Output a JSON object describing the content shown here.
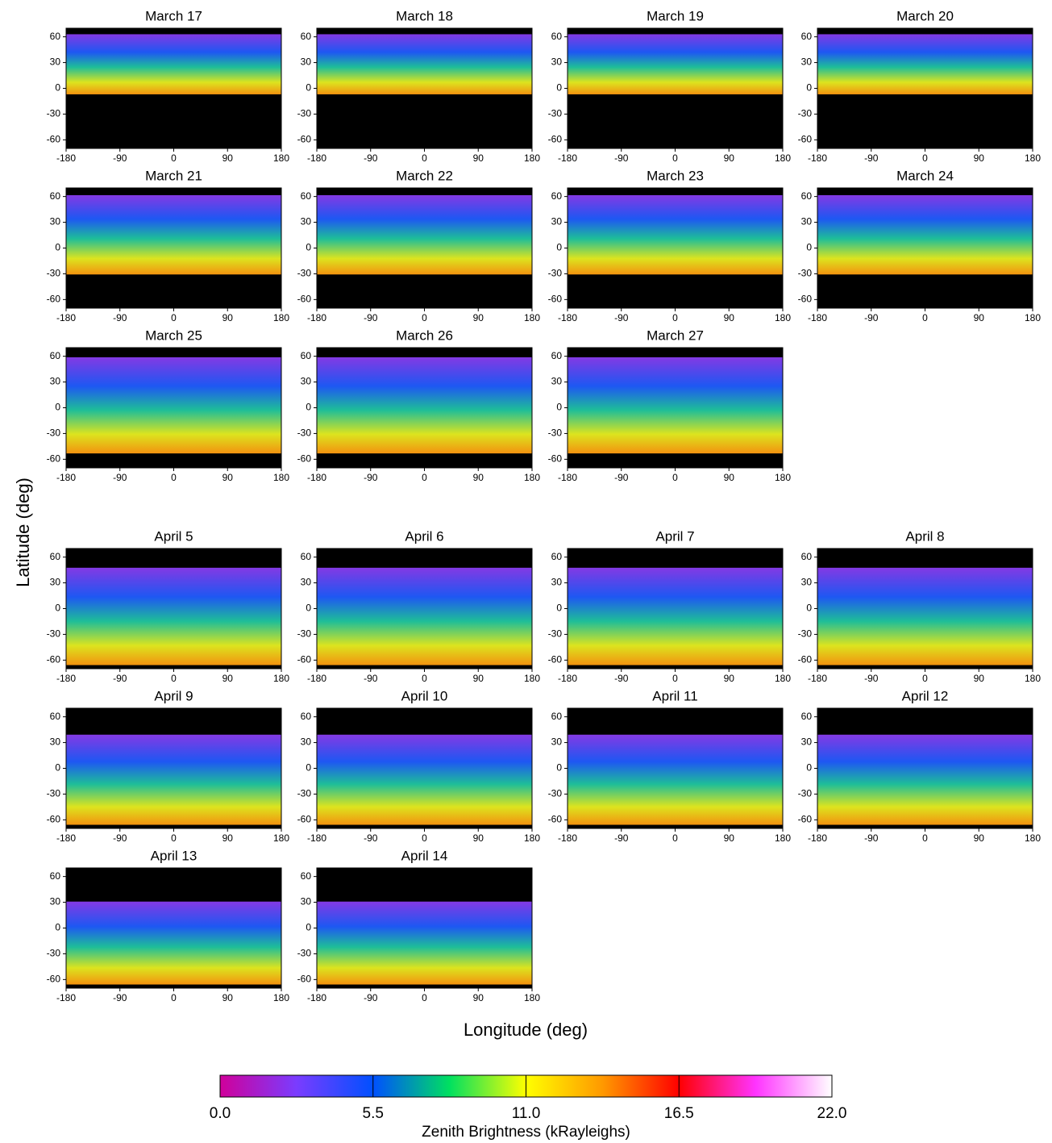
{
  "ylabel": "Latitude (deg)",
  "xlabel": "Longitude (deg)",
  "chart_data": [
    {
      "type": "map",
      "title": "March 17",
      "xlim": [
        -180,
        180
      ],
      "ylim": [
        -70,
        70
      ],
      "xticks": [
        -180,
        -90,
        0,
        90,
        180
      ],
      "yticks": [
        -60,
        -30,
        0,
        30,
        60
      ]
    },
    {
      "type": "map",
      "title": "March 18",
      "xlim": [
        -180,
        180
      ],
      "ylim": [
        -70,
        70
      ],
      "xticks": [
        -180,
        -90,
        0,
        90,
        180
      ],
      "yticks": [
        -60,
        -30,
        0,
        30,
        60
      ]
    },
    {
      "type": "map",
      "title": "March 19",
      "xlim": [
        -180,
        180
      ],
      "ylim": [
        -70,
        70
      ],
      "xticks": [
        -180,
        -90,
        0,
        90,
        180
      ],
      "yticks": [
        -60,
        -30,
        0,
        30,
        60
      ]
    },
    {
      "type": "map",
      "title": "March 20",
      "xlim": [
        -180,
        180
      ],
      "ylim": [
        -70,
        70
      ],
      "xticks": [
        -180,
        -90,
        0,
        90,
        180
      ],
      "yticks": [
        -60,
        -30,
        0,
        30,
        60
      ]
    },
    {
      "type": "map",
      "title": "March 21",
      "xlim": [
        -180,
        180
      ],
      "ylim": [
        -70,
        70
      ],
      "xticks": [
        -180,
        -90,
        0,
        90,
        180
      ],
      "yticks": [
        -60,
        -30,
        0,
        30,
        60
      ]
    },
    {
      "type": "map",
      "title": "March 22",
      "xlim": [
        -180,
        180
      ],
      "ylim": [
        -70,
        70
      ],
      "xticks": [
        -180,
        -90,
        0,
        90,
        180
      ],
      "yticks": [
        -60,
        -30,
        0,
        30,
        60
      ]
    },
    {
      "type": "map",
      "title": "March 23",
      "xlim": [
        -180,
        180
      ],
      "ylim": [
        -70,
        70
      ],
      "xticks": [
        -180,
        -90,
        0,
        90,
        180
      ],
      "yticks": [
        -60,
        -30,
        0,
        30,
        60
      ]
    },
    {
      "type": "map",
      "title": "March 24",
      "xlim": [
        -180,
        180
      ],
      "ylim": [
        -70,
        70
      ],
      "xticks": [
        -180,
        -90,
        0,
        90,
        180
      ],
      "yticks": [
        -60,
        -30,
        0,
        30,
        60
      ]
    },
    {
      "type": "map",
      "title": "March 25",
      "xlim": [
        -180,
        180
      ],
      "ylim": [
        -70,
        70
      ],
      "xticks": [
        -180,
        -90,
        0,
        90,
        180
      ],
      "yticks": [
        -60,
        -30,
        0,
        30,
        60
      ]
    },
    {
      "type": "map",
      "title": "March 26",
      "xlim": [
        -180,
        180
      ],
      "ylim": [
        -70,
        70
      ],
      "xticks": [
        -180,
        -90,
        0,
        90,
        180
      ],
      "yticks": [
        -60,
        -30,
        0,
        30,
        60
      ]
    },
    {
      "type": "map",
      "title": "March 27",
      "xlim": [
        -180,
        180
      ],
      "ylim": [
        -70,
        70
      ],
      "xticks": [
        -180,
        -90,
        0,
        90,
        180
      ],
      "yticks": [
        -60,
        -30,
        0,
        30,
        60
      ]
    },
    {
      "type": "map",
      "title": "April 5",
      "xlim": [
        -180,
        180
      ],
      "ylim": [
        -70,
        70
      ],
      "xticks": [
        -180,
        -90,
        0,
        90,
        180
      ],
      "yticks": [
        -60,
        -30,
        0,
        30,
        60
      ]
    },
    {
      "type": "map",
      "title": "April 6",
      "xlim": [
        -180,
        180
      ],
      "ylim": [
        -70,
        70
      ],
      "xticks": [
        -180,
        -90,
        0,
        90,
        180
      ],
      "yticks": [
        -60,
        -30,
        0,
        30,
        60
      ]
    },
    {
      "type": "map",
      "title": "April 7",
      "xlim": [
        -180,
        180
      ],
      "ylim": [
        -70,
        70
      ],
      "xticks": [
        -180,
        -90,
        0,
        90,
        180
      ],
      "yticks": [
        -60,
        -30,
        0,
        30,
        60
      ]
    },
    {
      "type": "map",
      "title": "April 8",
      "xlim": [
        -180,
        180
      ],
      "ylim": [
        -70,
        70
      ],
      "xticks": [
        -180,
        -90,
        0,
        90,
        180
      ],
      "yticks": [
        -60,
        -30,
        0,
        30,
        60
      ]
    },
    {
      "type": "map",
      "title": "April 9",
      "xlim": [
        -180,
        180
      ],
      "ylim": [
        -70,
        70
      ],
      "xticks": [
        -180,
        -90,
        0,
        90,
        180
      ],
      "yticks": [
        -60,
        -30,
        0,
        30,
        60
      ]
    },
    {
      "type": "map",
      "title": "April 10",
      "xlim": [
        -180,
        180
      ],
      "ylim": [
        -70,
        70
      ],
      "xticks": [
        -180,
        -90,
        0,
        90,
        180
      ],
      "yticks": [
        -60,
        -30,
        0,
        30,
        60
      ]
    },
    {
      "type": "map",
      "title": "April 11",
      "xlim": [
        -180,
        180
      ],
      "ylim": [
        -70,
        70
      ],
      "xticks": [
        -180,
        -90,
        0,
        90,
        180
      ],
      "yticks": [
        -60,
        -30,
        0,
        30,
        60
      ]
    },
    {
      "type": "map",
      "title": "April 12",
      "xlim": [
        -180,
        180
      ],
      "ylim": [
        -70,
        70
      ],
      "xticks": [
        -180,
        -90,
        0,
        90,
        180
      ],
      "yticks": [
        -60,
        -30,
        0,
        30,
        60
      ]
    },
    {
      "type": "map",
      "title": "April 13",
      "xlim": [
        -180,
        180
      ],
      "ylim": [
        -70,
        70
      ],
      "xticks": [
        -180,
        -90,
        0,
        90,
        180
      ],
      "yticks": [
        -60,
        -30,
        0,
        30,
        60
      ]
    },
    {
      "type": "map",
      "title": "April 14",
      "xlim": [
        -180,
        180
      ],
      "ylim": [
        -70,
        70
      ],
      "xticks": [
        -180,
        -90,
        0,
        90,
        180
      ],
      "yticks": [
        -60,
        -30,
        0,
        30,
        60
      ]
    }
  ],
  "colorbar": {
    "type": "colorbar",
    "label": "Zenith Brightness (kRayleighs)",
    "vlim": [
      0,
      22
    ],
    "ticks": [
      {
        "value": 0,
        "label": "0.0"
      },
      {
        "value": 5.5,
        "label": "5.5"
      },
      {
        "value": 11,
        "label": "11.0"
      },
      {
        "value": 16.5,
        "label": "16.5"
      },
      {
        "value": 22,
        "label": "22.0"
      }
    ]
  }
}
